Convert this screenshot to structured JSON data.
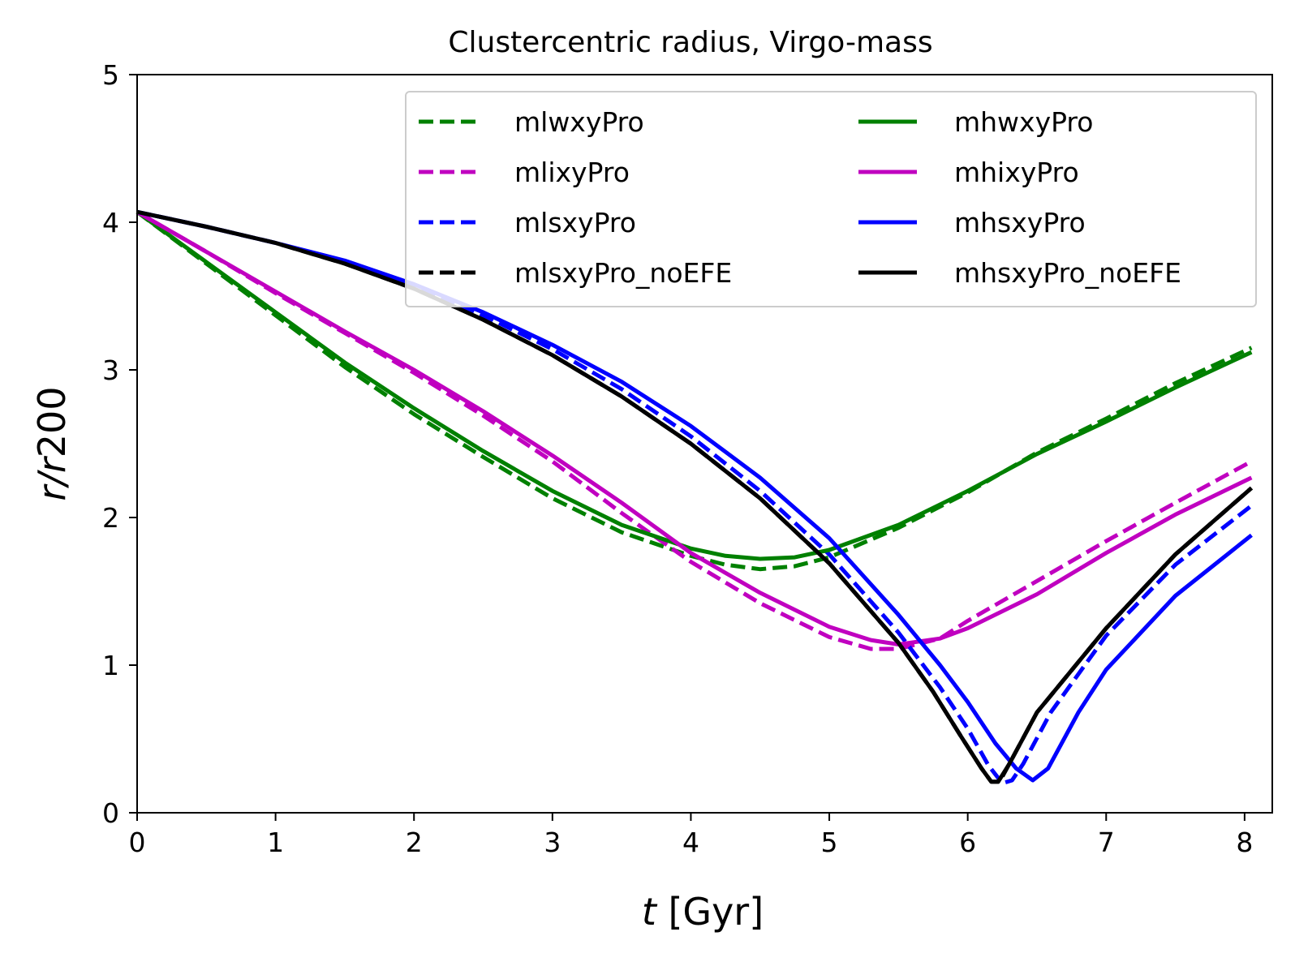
{
  "chart_data": {
    "type": "line",
    "title": "Clustercentric radius, Virgo-mass",
    "xlabel_symbol": "t",
    "xlabel_unit": "[Gyr]",
    "ylabel_symbol_1": "r",
    "ylabel_sep": "/",
    "ylabel_symbol_2": "r",
    "ylabel_suffix": "200",
    "xlim": [
      0,
      8.2
    ],
    "ylim": [
      0,
      5
    ],
    "xticks": [
      0,
      1,
      2,
      3,
      4,
      5,
      6,
      7,
      8
    ],
    "yticks": [
      0,
      1,
      2,
      3,
      4,
      5
    ],
    "xtick_labels": [
      "0",
      "1",
      "2",
      "3",
      "4",
      "5",
      "6",
      "7",
      "8"
    ],
    "ytick_labels": [
      "0",
      "1",
      "2",
      "3",
      "4",
      "5"
    ],
    "grid": false,
    "legend_position": "upper-right",
    "legend_columns": 2,
    "series": [
      {
        "name": "mlwxyPro",
        "color": "#008000",
        "style": "dashed",
        "x": [
          0,
          0.5,
          1,
          1.5,
          2,
          2.5,
          3,
          3.5,
          4,
          4.25,
          4.5,
          4.75,
          5,
          5.5,
          6,
          6.5,
          7,
          7.5,
          8.05
        ],
        "y": [
          4.07,
          3.72,
          3.37,
          3.02,
          2.7,
          2.41,
          2.13,
          1.9,
          1.74,
          1.68,
          1.65,
          1.67,
          1.73,
          1.93,
          2.17,
          2.44,
          2.67,
          2.91,
          3.15
        ]
      },
      {
        "name": "mlixyPro",
        "color": "#c000c0",
        "style": "dashed",
        "x": [
          0,
          0.5,
          1,
          1.5,
          2,
          2.5,
          3,
          3.5,
          4,
          4.5,
          5,
          5.3,
          5.5,
          5.8,
          6,
          6.5,
          7,
          7.5,
          8.05
        ],
        "y": [
          4.07,
          3.8,
          3.52,
          3.25,
          2.98,
          2.69,
          2.38,
          2.03,
          1.7,
          1.42,
          1.19,
          1.11,
          1.11,
          1.18,
          1.3,
          1.57,
          1.84,
          2.1,
          2.38
        ]
      },
      {
        "name": "mlsxyPro",
        "color": "#0000ff",
        "style": "dashed",
        "x": [
          0,
          0.5,
          1,
          1.5,
          2,
          2.5,
          3,
          3.5,
          4,
          4.5,
          5,
          5.5,
          5.8,
          6,
          6.15,
          6.25,
          6.32,
          6.4,
          6.6,
          7,
          7.5,
          8.05
        ],
        "y": [
          4.07,
          3.97,
          3.86,
          3.73,
          3.57,
          3.37,
          3.14,
          2.87,
          2.55,
          2.18,
          1.75,
          1.22,
          0.85,
          0.57,
          0.32,
          0.2,
          0.22,
          0.33,
          0.68,
          1.2,
          1.68,
          2.08
        ]
      },
      {
        "name": "mlsxyPro_noEFE",
        "color": "#000000",
        "style": "dashed",
        "x": [
          0,
          0.5,
          1,
          1.5,
          2,
          2.5,
          3,
          3.5,
          4,
          4.5,
          5,
          5.5,
          5.75,
          5.95,
          6.1,
          6.17,
          6.23,
          6.3,
          6.5,
          7,
          7.5,
          8.05
        ],
        "y": [
          4.07,
          3.97,
          3.86,
          3.72,
          3.55,
          3.34,
          3.1,
          2.82,
          2.5,
          2.13,
          1.69,
          1.15,
          0.82,
          0.52,
          0.3,
          0.21,
          0.21,
          0.33,
          0.68,
          1.25,
          1.75,
          2.2
        ]
      },
      {
        "name": "mhwxyPro",
        "color": "#008000",
        "style": "solid",
        "x": [
          0,
          0.5,
          1,
          1.5,
          2,
          2.5,
          3,
          3.5,
          4,
          4.25,
          4.5,
          4.75,
          5,
          5.5,
          6,
          6.5,
          7,
          7.5,
          8.05
        ],
        "y": [
          4.07,
          3.73,
          3.39,
          3.05,
          2.74,
          2.45,
          2.18,
          1.95,
          1.79,
          1.74,
          1.72,
          1.73,
          1.78,
          1.95,
          2.18,
          2.43,
          2.65,
          2.88,
          3.12
        ]
      },
      {
        "name": "mhixyPro",
        "color": "#c000c0",
        "style": "solid",
        "x": [
          0,
          0.5,
          1,
          1.5,
          2,
          2.5,
          3,
          3.5,
          4,
          4.5,
          5,
          5.3,
          5.5,
          5.8,
          6,
          6.5,
          7,
          7.5,
          8.05
        ],
        "y": [
          4.07,
          3.8,
          3.53,
          3.26,
          3.0,
          2.72,
          2.42,
          2.1,
          1.76,
          1.49,
          1.26,
          1.17,
          1.14,
          1.18,
          1.25,
          1.48,
          1.76,
          2.02,
          2.27
        ]
      },
      {
        "name": "mhsxyPro",
        "color": "#0000ff",
        "style": "solid",
        "x": [
          0,
          0.5,
          1,
          1.5,
          2,
          2.5,
          3,
          3.5,
          4,
          4.5,
          5,
          5.5,
          5.8,
          6,
          6.2,
          6.35,
          6.47,
          6.58,
          6.8,
          7,
          7.5,
          8.05
        ],
        "y": [
          4.07,
          3.97,
          3.86,
          3.74,
          3.58,
          3.39,
          3.17,
          2.92,
          2.62,
          2.27,
          1.86,
          1.34,
          1.0,
          0.75,
          0.47,
          0.3,
          0.22,
          0.3,
          0.68,
          0.97,
          1.47,
          1.88
        ]
      },
      {
        "name": "mhsxyPro_noEFE",
        "color": "#000000",
        "style": "solid",
        "x": [
          0,
          0.5,
          1,
          1.5,
          2,
          2.5,
          3,
          3.5,
          4,
          4.5,
          5,
          5.5,
          5.75,
          5.95,
          6.1,
          6.17,
          6.22,
          6.3,
          6.5,
          7,
          7.5,
          8.05
        ],
        "y": [
          4.07,
          3.97,
          3.86,
          3.72,
          3.55,
          3.34,
          3.1,
          2.82,
          2.5,
          2.13,
          1.69,
          1.15,
          0.82,
          0.52,
          0.3,
          0.21,
          0.21,
          0.33,
          0.68,
          1.25,
          1.75,
          2.2
        ]
      }
    ]
  }
}
